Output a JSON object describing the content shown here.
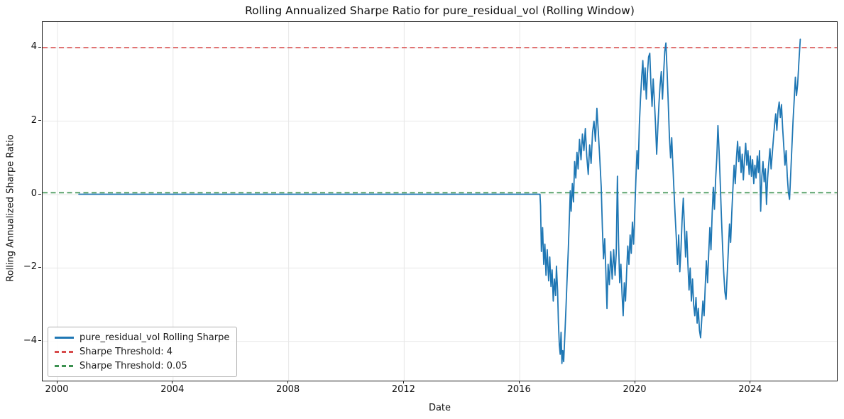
{
  "chart_data": {
    "type": "line",
    "title": "Rolling Annualized Sharpe Ratio for pure_residual_vol (Rolling Window)",
    "xlabel": "Date",
    "ylabel": "Rolling Annualized Sharpe Ratio",
    "grid": true,
    "legend_position": "lower left",
    "xlim": [
      1999.47,
      2027.04
    ],
    "ylim": [
      -5.1,
      4.71
    ],
    "x_ticks": [
      {
        "year": 2000,
        "label": "2000"
      },
      {
        "year": 2004,
        "label": "2004"
      },
      {
        "year": 2008,
        "label": "2008"
      },
      {
        "year": 2012,
        "label": "2012"
      },
      {
        "year": 2016,
        "label": "2016"
      },
      {
        "year": 2020,
        "label": "2020"
      },
      {
        "year": 2024,
        "label": "2024"
      }
    ],
    "y_ticks": [
      {
        "value": -4,
        "label": "−4"
      },
      {
        "value": -2,
        "label": "−2"
      },
      {
        "value": 0,
        "label": "0"
      },
      {
        "value": 2,
        "label": "2"
      },
      {
        "value": 4,
        "label": "4"
      }
    ],
    "thresholds": [
      {
        "label": "Sharpe Threshold: 4",
        "value": 4,
        "color": "#d74b4b",
        "style": "dashed"
      },
      {
        "label": "Sharpe Threshold: 0.05",
        "value": 0.05,
        "color": "#3c9150",
        "style": "dashed"
      }
    ],
    "series": [
      {
        "name": "pure_residual_vol Rolling Sharpe",
        "color": "#1f77b4",
        "points": [
          [
            2000.74,
            0.01
          ],
          [
            2016.7,
            0.01
          ],
          [
            2016.72,
            -0.3
          ],
          [
            2016.75,
            -1.55
          ],
          [
            2016.79,
            -0.9
          ],
          [
            2016.83,
            -1.9
          ],
          [
            2016.87,
            -1.35
          ],
          [
            2016.91,
            -2.2
          ],
          [
            2016.95,
            -1.5
          ],
          [
            2017.0,
            -2.35
          ],
          [
            2017.04,
            -1.7
          ],
          [
            2017.08,
            -2.5
          ],
          [
            2017.12,
            -2.05
          ],
          [
            2017.16,
            -2.9
          ],
          [
            2017.2,
            -2.3
          ],
          [
            2017.24,
            -2.75
          ],
          [
            2017.27,
            -1.95
          ],
          [
            2017.31,
            -2.6
          ],
          [
            2017.34,
            -3.5
          ],
          [
            2017.37,
            -4.1
          ],
          [
            2017.4,
            -4.35
          ],
          [
            2017.43,
            -3.75
          ],
          [
            2017.46,
            -4.6
          ],
          [
            2017.49,
            -4.25
          ],
          [
            2017.52,
            -4.55
          ],
          [
            2017.56,
            -3.85
          ],
          [
            2017.6,
            -3.1
          ],
          [
            2017.64,
            -2.3
          ],
          [
            2017.68,
            -1.5
          ],
          [
            2017.72,
            -0.6
          ],
          [
            2017.75,
            0.1
          ],
          [
            2017.78,
            -0.45
          ],
          [
            2017.82,
            0.3
          ],
          [
            2017.86,
            -0.2
          ],
          [
            2017.9,
            0.9
          ],
          [
            2017.94,
            0.45
          ],
          [
            2017.98,
            1.15
          ],
          [
            2018.02,
            0.7
          ],
          [
            2018.07,
            1.5
          ],
          [
            2018.12,
            0.95
          ],
          [
            2018.17,
            1.65
          ],
          [
            2018.22,
            1.2
          ],
          [
            2018.27,
            1.8
          ],
          [
            2018.32,
            1.05
          ],
          [
            2018.37,
            0.55
          ],
          [
            2018.42,
            1.35
          ],
          [
            2018.47,
            0.85
          ],
          [
            2018.52,
            1.7
          ],
          [
            2018.57,
            2.0
          ],
          [
            2018.62,
            1.45
          ],
          [
            2018.67,
            2.35
          ],
          [
            2018.72,
            1.7
          ],
          [
            2018.77,
            1.0
          ],
          [
            2018.82,
            0.2
          ],
          [
            2018.86,
            -0.9
          ],
          [
            2018.9,
            -1.75
          ],
          [
            2018.94,
            -1.2
          ],
          [
            2018.98,
            -2.1
          ],
          [
            2019.02,
            -3.1
          ],
          [
            2019.06,
            -1.9
          ],
          [
            2019.1,
            -2.45
          ],
          [
            2019.15,
            -1.55
          ],
          [
            2019.2,
            -2.3
          ],
          [
            2019.25,
            -1.5
          ],
          [
            2019.3,
            -2.2
          ],
          [
            2019.34,
            -1.6
          ],
          [
            2019.38,
            0.5
          ],
          [
            2019.42,
            -1.3
          ],
          [
            2019.46,
            -2.4
          ],
          [
            2019.5,
            -1.9
          ],
          [
            2019.54,
            -2.7
          ],
          [
            2019.58,
            -3.3
          ],
          [
            2019.62,
            -2.4
          ],
          [
            2019.66,
            -2.9
          ],
          [
            2019.7,
            -2.1
          ],
          [
            2019.74,
            -1.4
          ],
          [
            2019.78,
            -1.9
          ],
          [
            2019.82,
            -1.1
          ],
          [
            2019.86,
            -1.6
          ],
          [
            2019.9,
            -0.75
          ],
          [
            2019.94,
            -1.35
          ],
          [
            2019.98,
            -0.5
          ],
          [
            2020.02,
            0.4
          ],
          [
            2020.06,
            1.2
          ],
          [
            2020.1,
            0.7
          ],
          [
            2020.14,
            1.9
          ],
          [
            2020.18,
            2.6
          ],
          [
            2020.22,
            3.2
          ],
          [
            2020.26,
            3.65
          ],
          [
            2020.3,
            2.85
          ],
          [
            2020.34,
            3.45
          ],
          [
            2020.38,
            2.6
          ],
          [
            2020.42,
            3.3
          ],
          [
            2020.46,
            3.75
          ],
          [
            2020.5,
            3.85
          ],
          [
            2020.54,
            3.0
          ],
          [
            2020.58,
            2.4
          ],
          [
            2020.62,
            3.15
          ],
          [
            2020.66,
            2.55
          ],
          [
            2020.7,
            1.9
          ],
          [
            2020.74,
            1.1
          ],
          [
            2020.78,
            1.8
          ],
          [
            2020.82,
            2.5
          ],
          [
            2020.86,
            3.0
          ],
          [
            2020.9,
            3.35
          ],
          [
            2020.94,
            2.6
          ],
          [
            2020.98,
            3.3
          ],
          [
            2021.02,
            3.9
          ],
          [
            2021.06,
            4.13
          ],
          [
            2021.1,
            3.35
          ],
          [
            2021.14,
            2.5
          ],
          [
            2021.18,
            1.6
          ],
          [
            2021.22,
            1.0
          ],
          [
            2021.26,
            1.55
          ],
          [
            2021.3,
            0.8
          ],
          [
            2021.34,
            0.1
          ],
          [
            2021.38,
            -0.6
          ],
          [
            2021.42,
            -1.2
          ],
          [
            2021.46,
            -1.9
          ],
          [
            2021.5,
            -1.1
          ],
          [
            2021.54,
            -2.1
          ],
          [
            2021.58,
            -1.5
          ],
          [
            2021.62,
            -0.7
          ],
          [
            2021.66,
            -0.1
          ],
          [
            2021.7,
            -0.9
          ],
          [
            2021.74,
            -1.7
          ],
          [
            2021.78,
            -1.0
          ],
          [
            2021.82,
            -1.9
          ],
          [
            2021.86,
            -2.6
          ],
          [
            2021.9,
            -2.0
          ],
          [
            2021.94,
            -2.9
          ],
          [
            2021.98,
            -2.3
          ],
          [
            2022.02,
            -3.0
          ],
          [
            2022.06,
            -3.3
          ],
          [
            2022.1,
            -2.8
          ],
          [
            2022.14,
            -3.5
          ],
          [
            2022.18,
            -3.1
          ],
          [
            2022.22,
            -3.7
          ],
          [
            2022.26,
            -3.9
          ],
          [
            2022.3,
            -3.4
          ],
          [
            2022.34,
            -2.9
          ],
          [
            2022.38,
            -3.3
          ],
          [
            2022.42,
            -2.5
          ],
          [
            2022.46,
            -1.8
          ],
          [
            2022.5,
            -2.4
          ],
          [
            2022.54,
            -1.6
          ],
          [
            2022.58,
            -0.9
          ],
          [
            2022.62,
            -1.5
          ],
          [
            2022.66,
            -0.5
          ],
          [
            2022.7,
            0.2
          ],
          [
            2022.74,
            -0.4
          ],
          [
            2022.78,
            0.4
          ],
          [
            2022.82,
            1.0
          ],
          [
            2022.86,
            1.88
          ],
          [
            2022.9,
            1.2
          ],
          [
            2022.94,
            0.3
          ],
          [
            2022.98,
            -0.6
          ],
          [
            2023.02,
            -1.4
          ],
          [
            2023.06,
            -2.1
          ],
          [
            2023.1,
            -2.65
          ],
          [
            2023.14,
            -2.85
          ],
          [
            2023.18,
            -2.2
          ],
          [
            2023.22,
            -1.5
          ],
          [
            2023.26,
            -0.8
          ],
          [
            2023.3,
            -1.3
          ],
          [
            2023.34,
            -0.5
          ],
          [
            2023.38,
            0.2
          ],
          [
            2023.42,
            0.8
          ],
          [
            2023.46,
            0.3
          ],
          [
            2023.5,
            1.0
          ],
          [
            2023.54,
            1.45
          ],
          [
            2023.58,
            0.9
          ],
          [
            2023.62,
            1.3
          ],
          [
            2023.66,
            0.6
          ],
          [
            2023.7,
            1.1
          ],
          [
            2023.74,
            0.4
          ],
          [
            2023.78,
            0.95
          ],
          [
            2023.82,
            1.4
          ],
          [
            2023.86,
            0.8
          ],
          [
            2023.9,
            1.2
          ],
          [
            2023.94,
            0.55
          ],
          [
            2023.98,
            1.05
          ],
          [
            2024.02,
            0.5
          ],
          [
            2024.06,
            0.95
          ],
          [
            2024.1,
            0.3
          ],
          [
            2024.14,
            0.8
          ],
          [
            2024.18,
            0.45
          ],
          [
            2024.22,
            1.05
          ],
          [
            2024.26,
            0.6
          ],
          [
            2024.3,
            1.2
          ],
          [
            2024.34,
            -0.45
          ],
          [
            2024.38,
            0.5
          ],
          [
            2024.42,
            0.9
          ],
          [
            2024.46,
            0.35
          ],
          [
            2024.5,
            0.7
          ],
          [
            2024.54,
            -0.27
          ],
          [
            2024.58,
            0.45
          ],
          [
            2024.62,
            0.85
          ],
          [
            2024.66,
            1.25
          ],
          [
            2024.7,
            0.7
          ],
          [
            2024.74,
            1.1
          ],
          [
            2024.78,
            1.5
          ],
          [
            2024.82,
            1.9
          ],
          [
            2024.86,
            2.2
          ],
          [
            2024.9,
            1.75
          ],
          [
            2024.94,
            2.3
          ],
          [
            2024.98,
            2.52
          ],
          [
            2025.02,
            2.1
          ],
          [
            2025.06,
            2.45
          ],
          [
            2025.1,
            1.8
          ],
          [
            2025.14,
            1.3
          ],
          [
            2025.18,
            0.8
          ],
          [
            2025.22,
            1.2
          ],
          [
            2025.26,
            0.5
          ],
          [
            2025.3,
            0.05
          ],
          [
            2025.34,
            -0.13
          ],
          [
            2025.38,
            0.6
          ],
          [
            2025.42,
            1.3
          ],
          [
            2025.46,
            2.0
          ],
          [
            2025.5,
            2.6
          ],
          [
            2025.54,
            3.2
          ],
          [
            2025.58,
            2.7
          ],
          [
            2025.62,
            3.0
          ],
          [
            2025.66,
            3.6
          ],
          [
            2025.71,
            4.23
          ]
        ]
      }
    ],
    "legend_items": [
      {
        "label": "pure_residual_vol Rolling Sharpe",
        "swatch": "solid-line",
        "color": "#1f77b4"
      },
      {
        "label": "Sharpe Threshold: 4",
        "swatch": "dashed-line",
        "color": "#d74b4b"
      },
      {
        "label": "Sharpe Threshold: 0.05",
        "swatch": "dashed-line",
        "color": "#3c9150"
      }
    ],
    "colors": {
      "series_blue": "#1f77b4",
      "threshold_red": "#d74b4b",
      "threshold_green": "#3c9150",
      "gridline": "#e7e7e7",
      "spine": "#1a1a1a"
    }
  }
}
